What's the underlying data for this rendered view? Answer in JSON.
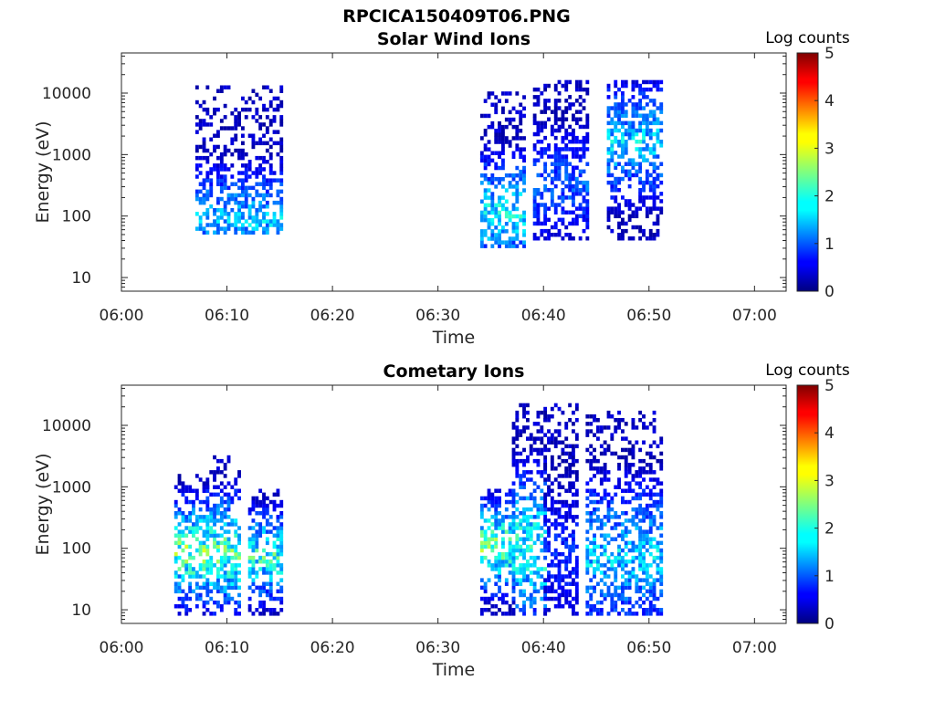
{
  "figure_title": "RPCICA150409T06.PNG",
  "chart_data": [
    {
      "type": "heatmap",
      "title": "Solar Wind Ions",
      "xlabel": "Time",
      "ylabel": "Energy (eV)",
      "y_scale": "log",
      "xlim": [
        "06:00",
        "07:03"
      ],
      "ylim": [
        6,
        45000
      ],
      "x_ticks": [
        "06:00",
        "06:10",
        "06:20",
        "06:30",
        "06:40",
        "06:50",
        "07:00"
      ],
      "y_ticks": [
        "10",
        "100",
        "1000",
        "10000"
      ],
      "colorbar": {
        "label": "Log counts",
        "range": [
          0,
          5
        ],
        "ticks": [
          "0",
          "1",
          "2",
          "3",
          "4",
          "5"
        ],
        "colormap": "jet"
      },
      "grid": false,
      "clusters": [
        {
          "t_start": "06:07",
          "t_end": "06:15",
          "e_min": 50,
          "e_max": 12000,
          "peak_log_counts": 1.9,
          "peak_energy": 80
        },
        {
          "t_start": "06:34",
          "t_end": "06:38",
          "e_min": 30,
          "e_max": 10000,
          "peak_log_counts": 2.2,
          "peak_energy": 100
        },
        {
          "t_start": "06:39",
          "t_end": "06:44",
          "e_min": 40,
          "e_max": 15000,
          "peak_log_counts": 1.3,
          "peak_energy": 300
        },
        {
          "t_start": "06:46",
          "t_end": "06:51",
          "e_min": 40,
          "e_max": 15000,
          "peak_log_counts": 2.0,
          "peak_energy": 1500
        }
      ]
    },
    {
      "type": "heatmap",
      "title": "Cometary Ions",
      "xlabel": "Time",
      "ylabel": "Energy (eV)",
      "y_scale": "log",
      "xlim": [
        "06:00",
        "07:03"
      ],
      "ylim": [
        6,
        45000
      ],
      "x_ticks": [
        "06:00",
        "06:10",
        "06:20",
        "06:30",
        "06:40",
        "06:50",
        "07:00"
      ],
      "y_ticks": [
        "10",
        "100",
        "1000",
        "10000"
      ],
      "colorbar": {
        "label": "Log counts",
        "range": [
          0,
          5
        ],
        "ticks": [
          "0",
          "1",
          "2",
          "3",
          "4",
          "5"
        ],
        "colormap": "jet"
      },
      "grid": false,
      "clusters": [
        {
          "t_start": "06:05",
          "t_end": "06:08",
          "e_min": 8,
          "e_max": 1500,
          "peak_log_counts": 2.9,
          "peak_energy": 80
        },
        {
          "t_start": "06:08",
          "t_end": "06:11",
          "e_min": 8,
          "e_max": 3000,
          "peak_log_counts": 2.7,
          "peak_energy": 80
        },
        {
          "t_start": "06:12",
          "t_end": "06:15",
          "e_min": 8,
          "e_max": 800,
          "peak_log_counts": 2.5,
          "peak_energy": 70
        },
        {
          "t_start": "06:34",
          "t_end": "06:37",
          "e_min": 8,
          "e_max": 800,
          "peak_log_counts": 2.9,
          "peak_energy": 100
        },
        {
          "t_start": "06:37",
          "t_end": "06:40",
          "e_min": 8,
          "e_max": 20000,
          "peak_log_counts": 2.5,
          "peak_energy": 90
        },
        {
          "t_start": "06:40",
          "t_end": "06:43",
          "e_min": 8,
          "e_max": 20000,
          "peak_log_counts": 1.0,
          "peak_energy": 80
        },
        {
          "t_start": "06:44",
          "t_end": "06:51",
          "e_min": 8,
          "e_max": 15000,
          "peak_log_counts": 2.0,
          "peak_energy": 70
        }
      ]
    }
  ]
}
